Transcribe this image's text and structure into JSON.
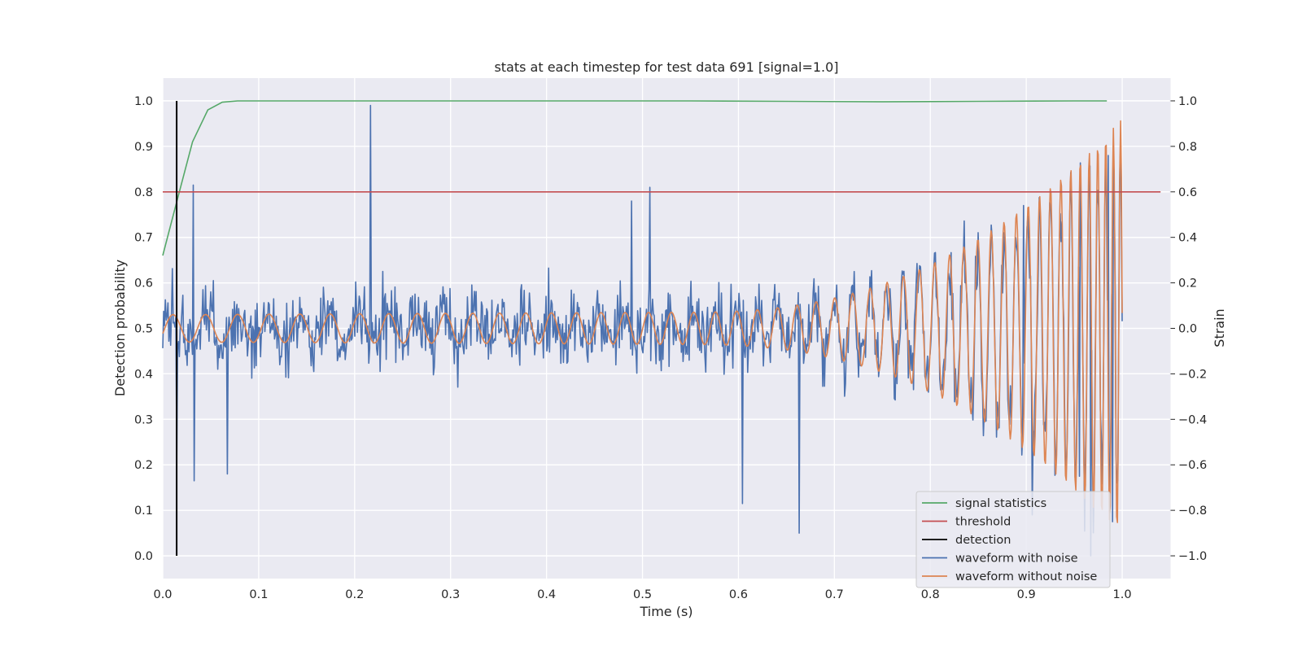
{
  "chart_data": {
    "type": "line",
    "title": "stats at each timestep for test data 691 [signal=1.0]",
    "xlabel": "Time (s)",
    "ylabel": "Detection probability",
    "y2label": "Strain",
    "xlim": [
      0.0,
      1.05
    ],
    "ylim": [
      -0.05,
      1.05
    ],
    "y2lim": [
      -1.1,
      1.1
    ],
    "xticks": [
      "0.0",
      "0.1",
      "0.2",
      "0.3",
      "0.4",
      "0.5",
      "0.6",
      "0.7",
      "0.8",
      "0.9",
      "1.0"
    ],
    "yticks": [
      "0.0",
      "0.1",
      "0.2",
      "0.3",
      "0.4",
      "0.5",
      "0.6",
      "0.7",
      "0.8",
      "0.9",
      "1.0"
    ],
    "y2ticks": [
      "−1.0",
      "−0.8",
      "−0.6",
      "−0.4",
      "−0.2",
      "0.0",
      "0.2",
      "0.4",
      "0.6",
      "0.8",
      "1.0"
    ],
    "grid": true,
    "legend_position": "bottom-right",
    "series": [
      {
        "name": "signal statistics",
        "axis": "left",
        "color": "#55a868",
        "x": [
          0.0,
          0.016,
          0.031,
          0.047,
          0.062,
          0.078,
          0.094,
          0.15,
          0.25,
          0.4,
          0.55,
          0.65,
          0.75,
          0.85,
          0.95,
          0.984
        ],
        "y": [
          0.66,
          0.79,
          0.91,
          0.98,
          0.997,
          1.0,
          1.0,
          1.0,
          1.0,
          1.0,
          1.0,
          0.999,
          0.998,
          0.999,
          1.0,
          1.0
        ]
      },
      {
        "name": "threshold",
        "axis": "left",
        "color": "#c44e52",
        "x": [
          0.0,
          1.04
        ],
        "y": [
          0.8,
          0.8
        ]
      },
      {
        "name": "detection",
        "axis": "left",
        "color": "#000000",
        "x": [
          0.0145,
          0.0145
        ],
        "y": [
          0.0,
          1.0
        ]
      },
      {
        "name": "waveform with noise",
        "axis": "right",
        "color": "#4c72b0",
        "t_start": 0.0,
        "t_end": 1.0,
        "peaks": [
          {
            "x": 0.015,
            "y": -0.57
          },
          {
            "x": 0.032,
            "y": 0.63
          },
          {
            "x": 0.033,
            "y": -0.67
          },
          {
            "x": 0.067,
            "y": -0.64
          },
          {
            "x": 0.217,
            "y": 0.98
          },
          {
            "x": 0.489,
            "y": 0.56
          },
          {
            "x": 0.508,
            "y": 0.62
          },
          {
            "x": 0.604,
            "y": -0.77
          },
          {
            "x": 0.663,
            "y": -0.9
          },
          {
            "x": 0.897,
            "y": 0.54
          },
          {
            "x": 0.906,
            "y": -0.82
          },
          {
            "x": 0.955,
            "y": -0.65
          },
          {
            "x": 0.967,
            "y": -1.0
          },
          {
            "x": 0.985,
            "y": 0.76
          },
          {
            "x": 0.99,
            "y": -0.85
          }
        ]
      },
      {
        "name": "waveform without noise",
        "axis": "right",
        "color": "#dd8452",
        "t_start": 0.0,
        "t_end": 1.0,
        "amplitude_start": 0.06,
        "amplitude_end": 0.9,
        "frequency_start_hz": 29,
        "frequency_end_hz": 200
      }
    ]
  }
}
